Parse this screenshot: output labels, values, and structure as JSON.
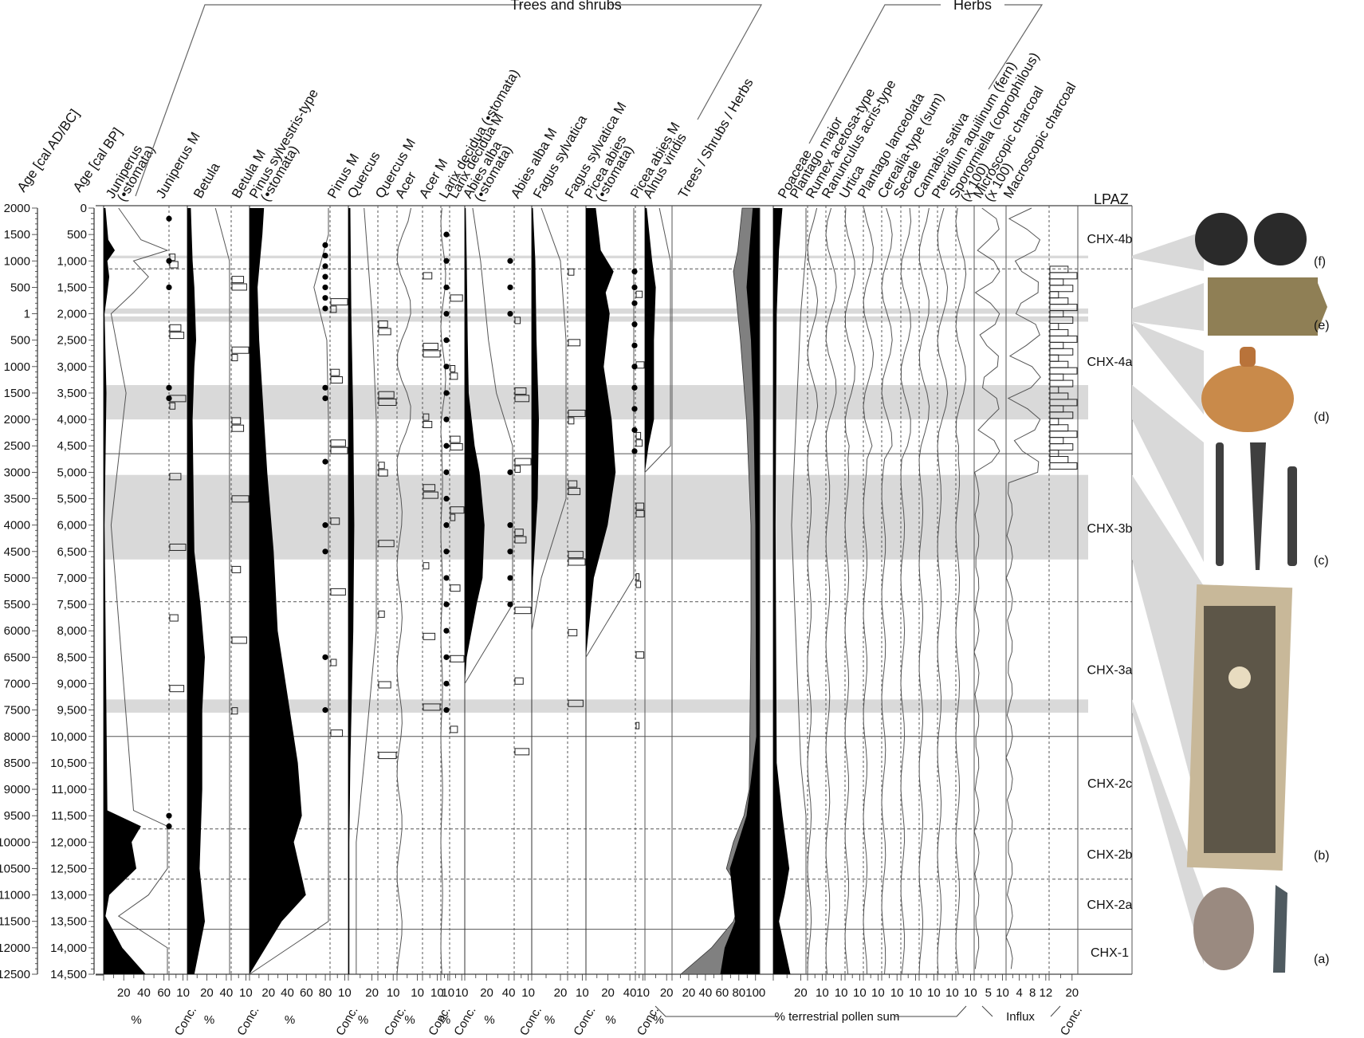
{
  "chart_data": {
    "type": "area",
    "title": "",
    "axes": {
      "age_ad_bc": {
        "label": "Age [cal AD/BC]",
        "ticks": [
          "2000",
          "1500",
          "1000",
          "500",
          "1",
          "500",
          "1000",
          "1500",
          "2000",
          "2500",
          "3000",
          "3500",
          "4000",
          "4500",
          "5000",
          "5500",
          "6000",
          "6500",
          "7000",
          "7500",
          "8000",
          "8500",
          "9000",
          "9500",
          "10000",
          "10500",
          "11000",
          "11500",
          "12000",
          "12500"
        ]
      },
      "age_bp": {
        "label": "Age [cal BP]",
        "ticks": [
          "0",
          "500",
          "1,000",
          "1,500",
          "2,000",
          "2,500",
          "3,000",
          "3,500",
          "4,000",
          "4,500",
          "5,000",
          "5,500",
          "6,000",
          "6,500",
          "7,000",
          "7,500",
          "8,000",
          "8,500",
          "9,000",
          "9,500",
          "10,000",
          "10,500",
          "11,000",
          "11,500",
          "12,000",
          "12,500",
          "13,000",
          "13,500",
          "14,000",
          "14,500"
        ],
        "ylim": [
          0,
          14500
        ]
      }
    },
    "groups": [
      {
        "name": "Trees and shrubs"
      },
      {
        "name": "Herbs"
      }
    ],
    "columns": [
      {
        "name": "Juniperus\n(•stomata)",
        "kind": "percent",
        "ticks": [
          "20",
          "40",
          "60"
        ],
        "unit": "%",
        "max": 70,
        "values": [
          [
            0,
            2
          ],
          [
            600,
            5
          ],
          [
            800,
            12
          ],
          [
            1000,
            4
          ],
          [
            1300,
            6
          ],
          [
            1600,
            4
          ],
          [
            2000,
            1
          ],
          [
            3500,
            3
          ],
          [
            6000,
            1
          ],
          [
            11400,
            4
          ],
          [
            11700,
            40
          ],
          [
            12000,
            30
          ],
          [
            12500,
            35
          ],
          [
            13000,
            6
          ],
          [
            13400,
            2
          ],
          [
            14000,
            20
          ],
          [
            14500,
            45
          ]
        ]
      },
      {
        "name": "Juniperus M",
        "kind": "conc",
        "ticks": [
          "10"
        ],
        "unit": "Conc."
      },
      {
        "name": "Betula",
        "kind": "percent",
        "ticks": [
          "20",
          "40"
        ],
        "unit": "%",
        "max": 50,
        "values": [
          [
            0,
            4
          ],
          [
            1000,
            6
          ],
          [
            1500,
            8
          ],
          [
            2500,
            10
          ],
          [
            3000,
            8
          ],
          [
            4000,
            6
          ],
          [
            6500,
            8
          ],
          [
            7500,
            15
          ],
          [
            8500,
            20
          ],
          [
            9500,
            17
          ],
          [
            11000,
            17
          ],
          [
            12500,
            14
          ],
          [
            13500,
            20
          ],
          [
            14000,
            14
          ],
          [
            14500,
            8
          ]
        ]
      },
      {
        "name": "Betula M",
        "kind": "conc",
        "ticks": [
          "10"
        ],
        "unit": "Conc."
      },
      {
        "name": "Pinus sylvestris-type\n(•stomata)",
        "kind": "percent",
        "ticks": [
          "20",
          "40",
          "60",
          "80"
        ],
        "unit": "%",
        "max": 100,
        "values": [
          [
            0,
            18
          ],
          [
            500,
            16
          ],
          [
            1500,
            10
          ],
          [
            2500,
            12
          ],
          [
            4000,
            18
          ],
          [
            5000,
            22
          ],
          [
            6500,
            30
          ],
          [
            8000,
            35
          ],
          [
            9000,
            45
          ],
          [
            10500,
            60
          ],
          [
            11500,
            65
          ],
          [
            12000,
            55
          ],
          [
            13000,
            70
          ],
          [
            13500,
            40
          ],
          [
            14500,
            0
          ]
        ]
      },
      {
        "name": "Pinus M",
        "kind": "conc",
        "ticks": [
          "10"
        ],
        "unit": "Conc."
      },
      {
        "name": "Quercus",
        "kind": "percent",
        "ticks": [
          "20"
        ],
        "unit": "%",
        "max": 30,
        "values": [
          [
            0,
            2
          ],
          [
            2000,
            3
          ],
          [
            4000,
            5
          ],
          [
            6000,
            6
          ],
          [
            8000,
            5
          ],
          [
            10500,
            2
          ],
          [
            12000,
            1
          ],
          [
            14500,
            1
          ]
        ]
      },
      {
        "name": "Quercus M",
        "kind": "conc",
        "ticks": [
          "10"
        ],
        "unit": "Conc."
      },
      {
        "name": "Acer",
        "kind": "percent",
        "ticks": [
          "10"
        ],
        "unit": "%",
        "max": 15
      },
      {
        "name": "Acer M",
        "kind": "conc",
        "ticks": [
          "10"
        ],
        "unit": "Conc."
      },
      {
        "name": "Larix decidua (•stomata)",
        "kind": "percent",
        "ticks": [
          "10"
        ],
        "unit": "%",
        "max": 15
      },
      {
        "name": "Larix decidua M",
        "kind": "conc",
        "ticks": [
          "10"
        ],
        "unit": "Conc."
      },
      {
        "name": "Abies alba\n(•stomata)",
        "kind": "percent",
        "ticks": [
          "20",
          "40"
        ],
        "unit": "%",
        "max": 50,
        "values": [
          [
            0,
            1
          ],
          [
            1000,
            2
          ],
          [
            2500,
            3
          ],
          [
            3500,
            4
          ],
          [
            4500,
            10
          ],
          [
            5000,
            15
          ],
          [
            6000,
            20
          ],
          [
            7000,
            18
          ],
          [
            7500,
            12
          ],
          [
            8500,
            2
          ],
          [
            9000,
            0
          ]
        ]
      },
      {
        "name": "Abies alba M",
        "kind": "conc",
        "ticks": [
          "10"
        ],
        "unit": "Conc."
      },
      {
        "name": "Fagus sylvatica",
        "kind": "percent",
        "ticks": [
          "20"
        ],
        "unit": "%",
        "max": 30,
        "values": [
          [
            0,
            1
          ],
          [
            1000,
            3
          ],
          [
            2500,
            4
          ],
          [
            4000,
            6
          ],
          [
            5500,
            5
          ],
          [
            7000,
            1
          ],
          [
            8000,
            0
          ]
        ]
      },
      {
        "name": "Fagus sylvatica M",
        "kind": "conc",
        "ticks": [
          "10"
        ],
        "unit": "Conc."
      },
      {
        "name": "Picea abies\n(•stomata)",
        "kind": "percent",
        "ticks": [
          "20",
          "40"
        ],
        "unit": "%",
        "max": 50,
        "values": [
          [
            0,
            10
          ],
          [
            800,
            15
          ],
          [
            1200,
            28
          ],
          [
            1600,
            20
          ],
          [
            2000,
            24
          ],
          [
            3000,
            18
          ],
          [
            4000,
            26
          ],
          [
            5000,
            30
          ],
          [
            6000,
            22
          ],
          [
            7000,
            8
          ],
          [
            8500,
            0
          ]
        ]
      },
      {
        "name": "Picea abies M",
        "kind": "conc",
        "ticks": [
          "10"
        ],
        "unit": "Conc."
      },
      {
        "name": "Alnus viridis",
        "kind": "percent",
        "ticks": [
          "20"
        ],
        "unit": "%",
        "max": 30,
        "values": [
          [
            0,
            2
          ],
          [
            1000,
            8
          ],
          [
            1500,
            12
          ],
          [
            2500,
            10
          ],
          [
            4000,
            10
          ],
          [
            4500,
            4
          ],
          [
            5000,
            0
          ],
          [
            14500,
            0
          ]
        ]
      },
      {
        "name": "Trees / Shrubs / Herbs",
        "kind": "cumulative",
        "ticks": [
          "20",
          "40",
          "60",
          "80",
          "100"
        ],
        "unit": "% terrestrial pollen sum",
        "trees": [
          [
            0,
            80
          ],
          [
            800,
            75
          ],
          [
            1200,
            70
          ],
          [
            1500,
            72
          ],
          [
            2500,
            78
          ],
          [
            4000,
            85
          ],
          [
            6000,
            90
          ],
          [
            8000,
            90
          ],
          [
            11000,
            88
          ],
          [
            11500,
            82
          ],
          [
            12000,
            70
          ],
          [
            12500,
            62
          ],
          [
            13000,
            80
          ],
          [
            13500,
            70
          ],
          [
            14000,
            45
          ],
          [
            14500,
            10
          ]
        ],
        "shrubs": [
          [
            0,
            92
          ],
          [
            800,
            88
          ],
          [
            1500,
            85
          ],
          [
            2500,
            90
          ],
          [
            4000,
            93
          ],
          [
            6000,
            95
          ],
          [
            10000,
            96
          ],
          [
            11500,
            85
          ],
          [
            12500,
            66
          ],
          [
            13500,
            72
          ],
          [
            14000,
            60
          ],
          [
            14500,
            55
          ]
        ]
      },
      {
        "name": "Poaceae",
        "kind": "percent",
        "ticks": [
          "20"
        ],
        "unit": "%",
        "max": 30,
        "values": [
          [
            0,
            8
          ],
          [
            800,
            5
          ],
          [
            2000,
            3
          ],
          [
            6000,
            2
          ],
          [
            10500,
            3
          ],
          [
            11500,
            8
          ],
          [
            12500,
            14
          ],
          [
            13000,
            10
          ],
          [
            13500,
            5
          ],
          [
            14500,
            15
          ]
        ]
      },
      {
        "name": "Plantago major",
        "kind": "percent",
        "ticks": [
          "10"
        ],
        "unit": "%",
        "max": 15
      },
      {
        "name": "Rumex acetosa-type",
        "kind": "percent",
        "ticks": [
          "10"
        ],
        "unit": "%",
        "max": 15
      },
      {
        "name": "Ranunculus acris-type",
        "kind": "percent",
        "ticks": [
          "10"
        ],
        "unit": "%",
        "max": 15
      },
      {
        "name": "Urtica",
        "kind": "percent",
        "ticks": [
          "10"
        ],
        "unit": "%",
        "max": 15
      },
      {
        "name": "Plantago lanceolata",
        "kind": "percent",
        "ticks": [
          "10"
        ],
        "unit": "%",
        "max": 15
      },
      {
        "name": "Cerealia-type (sum)",
        "kind": "percent",
        "ticks": [
          "10"
        ],
        "unit": "%",
        "max": 15
      },
      {
        "name": "Secale",
        "kind": "percent",
        "ticks": [
          "10"
        ],
        "unit": "%",
        "max": 15
      },
      {
        "name": "Cannabis sativa",
        "kind": "percent",
        "ticks": [
          "10"
        ],
        "unit": "%",
        "max": 15
      },
      {
        "name": "Pteridium aquilinum (fern)",
        "kind": "percent",
        "ticks": [
          "10"
        ],
        "unit": "%",
        "max": 15
      },
      {
        "name": "Sporormiella (coprophilous)\n(x 100)",
        "kind": "influx",
        "ticks": [
          "5",
          "10"
        ],
        "unit": "Influx"
      },
      {
        "name": "Microscopic charcoal\n(x 100)",
        "kind": "influx",
        "ticks": [
          "4",
          "8",
          "12"
        ],
        "unit": "Influx"
      },
      {
        "name": "Macroscopic charcoal",
        "kind": "conc",
        "ticks": [
          "20"
        ],
        "unit": "Conc."
      }
    ],
    "bottom_labels": {
      "percent": "%",
      "conc": "Conc.",
      "terrestrial": "% terrestrial pollen sum",
      "influx": "Influx"
    },
    "lpaz": {
      "label": "LPAZ",
      "zones": [
        {
          "name": "CHX-4b",
          "from": 0,
          "to": 1150
        },
        {
          "name": "CHX-4a",
          "from": 1150,
          "to": 4650
        },
        {
          "name": "CHX-3b",
          "from": 4650,
          "to": 7450
        },
        {
          "name": "CHX-3a",
          "from": 7450,
          "to": 10000
        },
        {
          "name": "CHX-2c",
          "from": 10000,
          "to": 11750
        },
        {
          "name": "CHX-2b",
          "from": 11750,
          "to": 12700
        },
        {
          "name": "CHX-2a",
          "from": 12700,
          "to": 13650
        },
        {
          "name": "CHX-1",
          "from": 13650,
          "to": 14500
        }
      ],
      "major_boundaries": [
        4650,
        10000,
        13650
      ],
      "minor_boundaries": [
        1150,
        7450,
        11750,
        12700
      ]
    },
    "highlight_bands": [
      {
        "from": 900,
        "to": 950
      },
      {
        "from": 1900,
        "to": 2000
      },
      {
        "from": 2050,
        "to": 2150
      },
      {
        "from": 3350,
        "to": 4000
      },
      {
        "from": 5050,
        "to": 6650
      },
      {
        "from": 9300,
        "to": 9550
      }
    ],
    "artifacts": [
      {
        "label": "(f)",
        "color": "#2a2a2a"
      },
      {
        "label": "(e)",
        "color": "#8f7f55"
      },
      {
        "label": "(d)",
        "color": "#c98a4a"
      },
      {
        "label": "(c)",
        "color": "#3f3f3f"
      },
      {
        "label": "(b)",
        "color": "#c8b899"
      },
      {
        "label": "(a)",
        "color": "#9a8a80"
      }
    ],
    "colors": {
      "black": "#000000",
      "grey_fill": "#808080",
      "band": "#d9d9d9",
      "line": "#555555"
    }
  }
}
